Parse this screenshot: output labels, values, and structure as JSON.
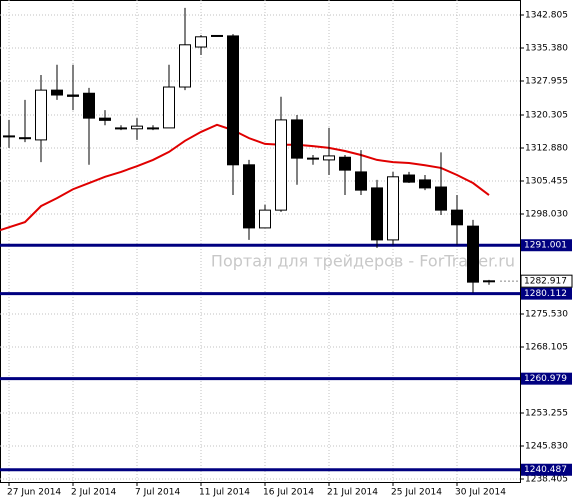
{
  "chart_data": {
    "type": "candlestick",
    "categories": [
      "27 Jun 2014",
      null,
      null,
      null,
      "2 Jul 2014",
      null,
      null,
      null,
      "7 Jul 2014",
      null,
      null,
      null,
      "11 Jul 2014",
      null,
      null,
      null,
      "16 Jul 2014",
      null,
      null,
      null,
      "21 Jul 2014",
      null,
      null,
      null,
      "25 Jul 2014",
      null,
      null,
      null,
      "30 Jul 2014",
      null,
      null
    ],
    "open": [
      1315.6,
      1315.2,
      1314.7,
      1325.9,
      1324.8,
      1325.2,
      1319.6,
      1317.4,
      1317.2,
      1317.4,
      1317.4,
      1326.6,
      1335.6,
      1338.1,
      1338.1,
      1309.1,
      1294.9,
      1298.9,
      1319.2,
      1310.6,
      1310.2,
      1310.8,
      1307.5,
      1303.9,
      1292.2,
      1306.8,
      1305.7,
      1304.1,
      1298.9,
      1295.3,
      1283.0
    ],
    "high": [
      1319.2,
      1323.7,
      1329.3,
      1331.6,
      1331.6,
      1326.4,
      1321.4,
      1318.0,
      1319.6,
      1318.0,
      1331.6,
      1344.4,
      1338.3,
      1338.3,
      1338.5,
      1310.2,
      1300.1,
      1324.4,
      1320.3,
      1311.3,
      1317.4,
      1311.3,
      1312.4,
      1305.7,
      1307.5,
      1307.5,
      1306.8,
      1311.9,
      1302.3,
      1296.7,
      1283.2
    ],
    "low": [
      1312.9,
      1314.2,
      1309.7,
      1323.7,
      1321.4,
      1309.1,
      1318.0,
      1316.9,
      1314.7,
      1316.9,
      1317.4,
      1325.9,
      1333.8,
      1337.9,
      1302.3,
      1292.2,
      1294.9,
      1298.5,
      1304.6,
      1309.1,
      1306.8,
      1302.3,
      1302.3,
      1290.4,
      1291.1,
      1305.0,
      1303.4,
      1297.8,
      1291.1,
      1280.3,
      1282.1
    ],
    "close": [
      1315.5,
      1315.0,
      1325.9,
      1324.8,
      1324.5,
      1319.6,
      1319.1,
      1317.2,
      1317.8,
      1317.2,
      1326.6,
      1336.1,
      1337.9,
      1338.2,
      1309.1,
      1294.9,
      1298.9,
      1319.2,
      1310.6,
      1310.5,
      1311.1,
      1307.9,
      1303.4,
      1292.2,
      1306.4,
      1305.2,
      1303.9,
      1298.9,
      1295.6,
      1282.7,
      1282.917
    ],
    "up_color": "#ffffff",
    "down_color": "#000000",
    "moving_average": {
      "color": "#e00000",
      "values": [
        1294.4,
        1296.2,
        1299.8,
        1301.6,
        1303.6,
        1305.0,
        1306.4,
        1307.5,
        1308.8,
        1310.2,
        1312.0,
        1314.5,
        1316.5,
        1318.1,
        1316.9,
        1315.1,
        1313.8,
        1313.6,
        1313.6,
        1313.3,
        1312.9,
        1312.2,
        1311.3,
        1310.2,
        1309.7,
        1309.5,
        1309.0,
        1308.4,
        1306.8,
        1305.0,
        1302.3
      ]
    },
    "levels": [
      1291.001,
      1280.112,
      1260.979,
      1240.487
    ],
    "level_color": "#000080",
    "current_price": 1282.917,
    "ylim": [
      1237.73,
      1346.18
    ],
    "yticks": [
      1342.805,
      {
        "value": 1335.38,
        "label": "1335.380"
      },
      1327.955,
      1320.305,
      {
        "value": 1312.88,
        "label": "1312.880"
      },
      1305.455,
      {
        "value": 1298.03,
        "label": "1298.030"
      },
      {
        "value": 1275.53,
        "label": "1275.530"
      },
      1268.105,
      1253.255,
      {
        "value": 1245.83,
        "label": "1245.830"
      },
      1238.405
    ],
    "grid": true,
    "watermark": "Портал для трейдеров - ForTrader.ru"
  }
}
